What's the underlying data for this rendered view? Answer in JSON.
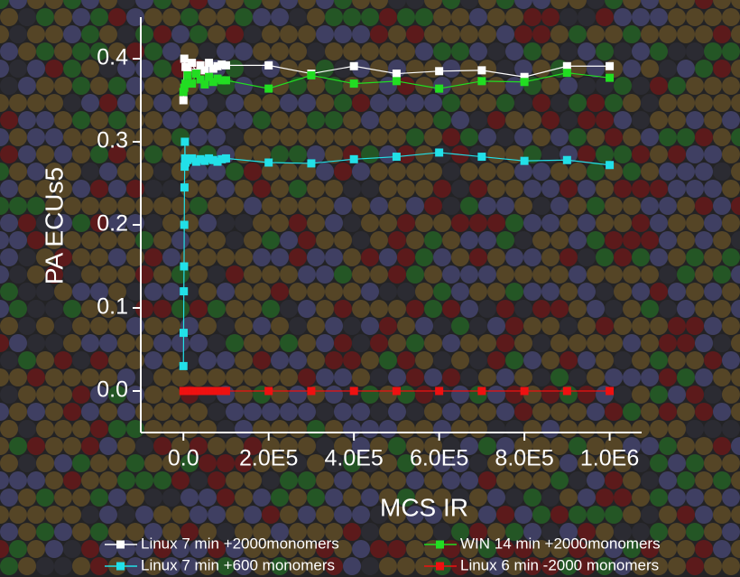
{
  "chart_data": {
    "type": "line",
    "x_label": "MCS IR",
    "y_label": "PA ECUs5",
    "xlim": [
      -100000,
      1075000
    ],
    "ylim": [
      -0.05,
      0.45
    ],
    "xticks": [
      {
        "value": 0,
        "label": "0.0"
      },
      {
        "value": 200000,
        "label": "2.0E5"
      },
      {
        "value": 400000,
        "label": "4.0E5"
      },
      {
        "value": 600000,
        "label": "6.0E5"
      },
      {
        "value": 800000,
        "label": "8.0E5"
      },
      {
        "value": 1000000,
        "label": "1.0E6"
      }
    ],
    "yticks": [
      {
        "value": 0,
        "label": "0.0"
      },
      {
        "value": 0.1,
        "label": "0.1"
      },
      {
        "value": 0.2,
        "label": "0.2"
      },
      {
        "value": 0.3,
        "label": "0.3"
      },
      {
        "value": 0.4,
        "label": "0.4"
      }
    ],
    "series": [
      {
        "name": "Linux 7 min +2000monomers",
        "color": "#ffffff",
        "x": [
          0,
          2000,
          5000,
          10000,
          20000,
          30000,
          40000,
          50000,
          60000,
          70000,
          80000,
          90000,
          100000,
          200000,
          300000,
          400000,
          500000,
          600000,
          700000,
          800000,
          900000,
          1000000
        ],
        "values": [
          0.35,
          0.4,
          0.39,
          0.385,
          0.395,
          0.383,
          0.392,
          0.386,
          0.395,
          0.388,
          0.391,
          0.393,
          0.392,
          0.392,
          0.382,
          0.391,
          0.382,
          0.385,
          0.386,
          0.378,
          0.391,
          0.391
        ]
      },
      {
        "name": "WIN 14 min +2000monomers",
        "color": "#22dd22",
        "x": [
          0,
          2000,
          5000,
          10000,
          20000,
          30000,
          40000,
          50000,
          60000,
          70000,
          80000,
          90000,
          100000,
          200000,
          300000,
          400000,
          500000,
          600000,
          700000,
          800000,
          900000,
          1000000
        ],
        "values": [
          0.36,
          0.365,
          0.37,
          0.38,
          0.37,
          0.382,
          0.375,
          0.369,
          0.378,
          0.372,
          0.376,
          0.374,
          0.374,
          0.364,
          0.38,
          0.37,
          0.373,
          0.364,
          0.373,
          0.372,
          0.383,
          0.377
        ]
      },
      {
        "name": "Linux 7 min +600 monomers",
        "color": "#22e0e8",
        "x": [
          0,
          500,
          1000,
          1500,
          2000,
          2500,
          3000,
          3500,
          4000,
          5000,
          10000,
          20000,
          30000,
          40000,
          50000,
          60000,
          70000,
          80000,
          90000,
          100000,
          200000,
          300000,
          400000,
          500000,
          600000,
          700000,
          800000,
          900000,
          1000000
        ],
        "values": [
          0.03,
          0.07,
          0.12,
          0.15,
          0.2,
          0.245,
          0.27,
          0.3,
          0.28,
          0.275,
          0.278,
          0.28,
          0.276,
          0.279,
          0.277,
          0.28,
          0.278,
          0.276,
          0.279,
          0.28,
          0.275,
          0.274,
          0.279,
          0.282,
          0.287,
          0.282,
          0.277,
          0.278,
          0.272
        ]
      },
      {
        "name": "Linux 6 min -2000 monomers",
        "color": "#ee1111",
        "x": [
          0,
          10000,
          20000,
          30000,
          40000,
          50000,
          60000,
          70000,
          80000,
          90000,
          100000,
          200000,
          300000,
          400000,
          500000,
          600000,
          700000,
          800000,
          900000,
          1000000
        ],
        "values": [
          0,
          0,
          0,
          0,
          0,
          0,
          0,
          0,
          0,
          0,
          0,
          0,
          0,
          0,
          0,
          0,
          0,
          0,
          0,
          0
        ]
      }
    ]
  }
}
